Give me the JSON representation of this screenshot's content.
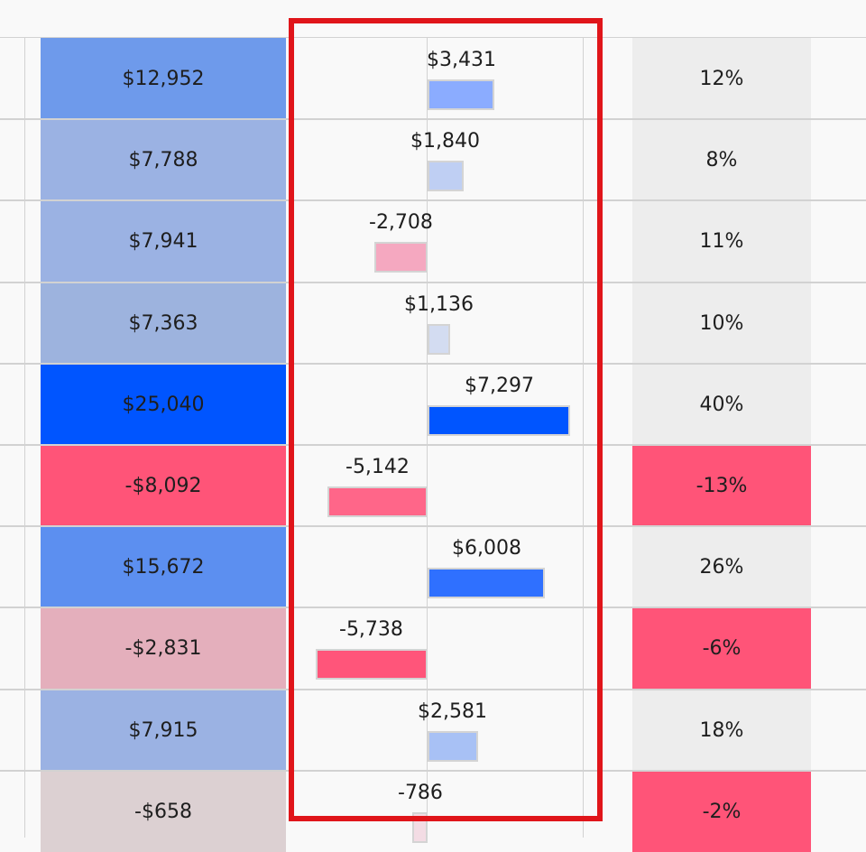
{
  "chart_data": {
    "type": "table",
    "columns": [
      {
        "kind": "value",
        "values": [
          "$12,952",
          "$7,788",
          "$7,941",
          "$7,363",
          "$25,040",
          "-$8,092",
          "$15,672",
          "-$2,831",
          "$7,915",
          "-$658"
        ]
      },
      {
        "kind": "bar",
        "values": [
          3431,
          1840,
          -2708,
          1136,
          7297,
          -5142,
          6008,
          -5738,
          2581,
          -786
        ],
        "labels": [
          "$3,431",
          "$1,840",
          "-2,708",
          "$1,136",
          "$7,297",
          "-5,142",
          "$6,008",
          "-5,738",
          "$2,581",
          "-786"
        ]
      },
      {
        "kind": "percent",
        "values": [
          "12%",
          "8%",
          "11%",
          "10%",
          "40%",
          "-13%",
          "26%",
          "-6%",
          "18%",
          "-2%"
        ]
      }
    ]
  },
  "colors": {
    "col1_fill": [
      "#6e9aeb",
      "#9bb2e3",
      "#9bb2e3",
      "#9db3de",
      "#0055ff",
      "#ff5478",
      "#5c8ff0",
      "#e4afbc",
      "#9bb2e3",
      "#dcd0d2"
    ],
    "bar_fill": [
      "#8bacff",
      "#bfcff3",
      "#f5a8c0",
      "#d3dcf1",
      "#0055ff",
      "#ff6689",
      "#2f70ff",
      "#ff557a",
      "#a8c1f5",
      "#f3dce4"
    ],
    "pct_fill": [
      "#ededed",
      "#ededed",
      "#ededed",
      "#ededed",
      "#ededed",
      "#ff5478",
      "#ededed",
      "#ff5478",
      "#ededed",
      "#ff5478"
    ],
    "highlight": "#e0151a"
  }
}
